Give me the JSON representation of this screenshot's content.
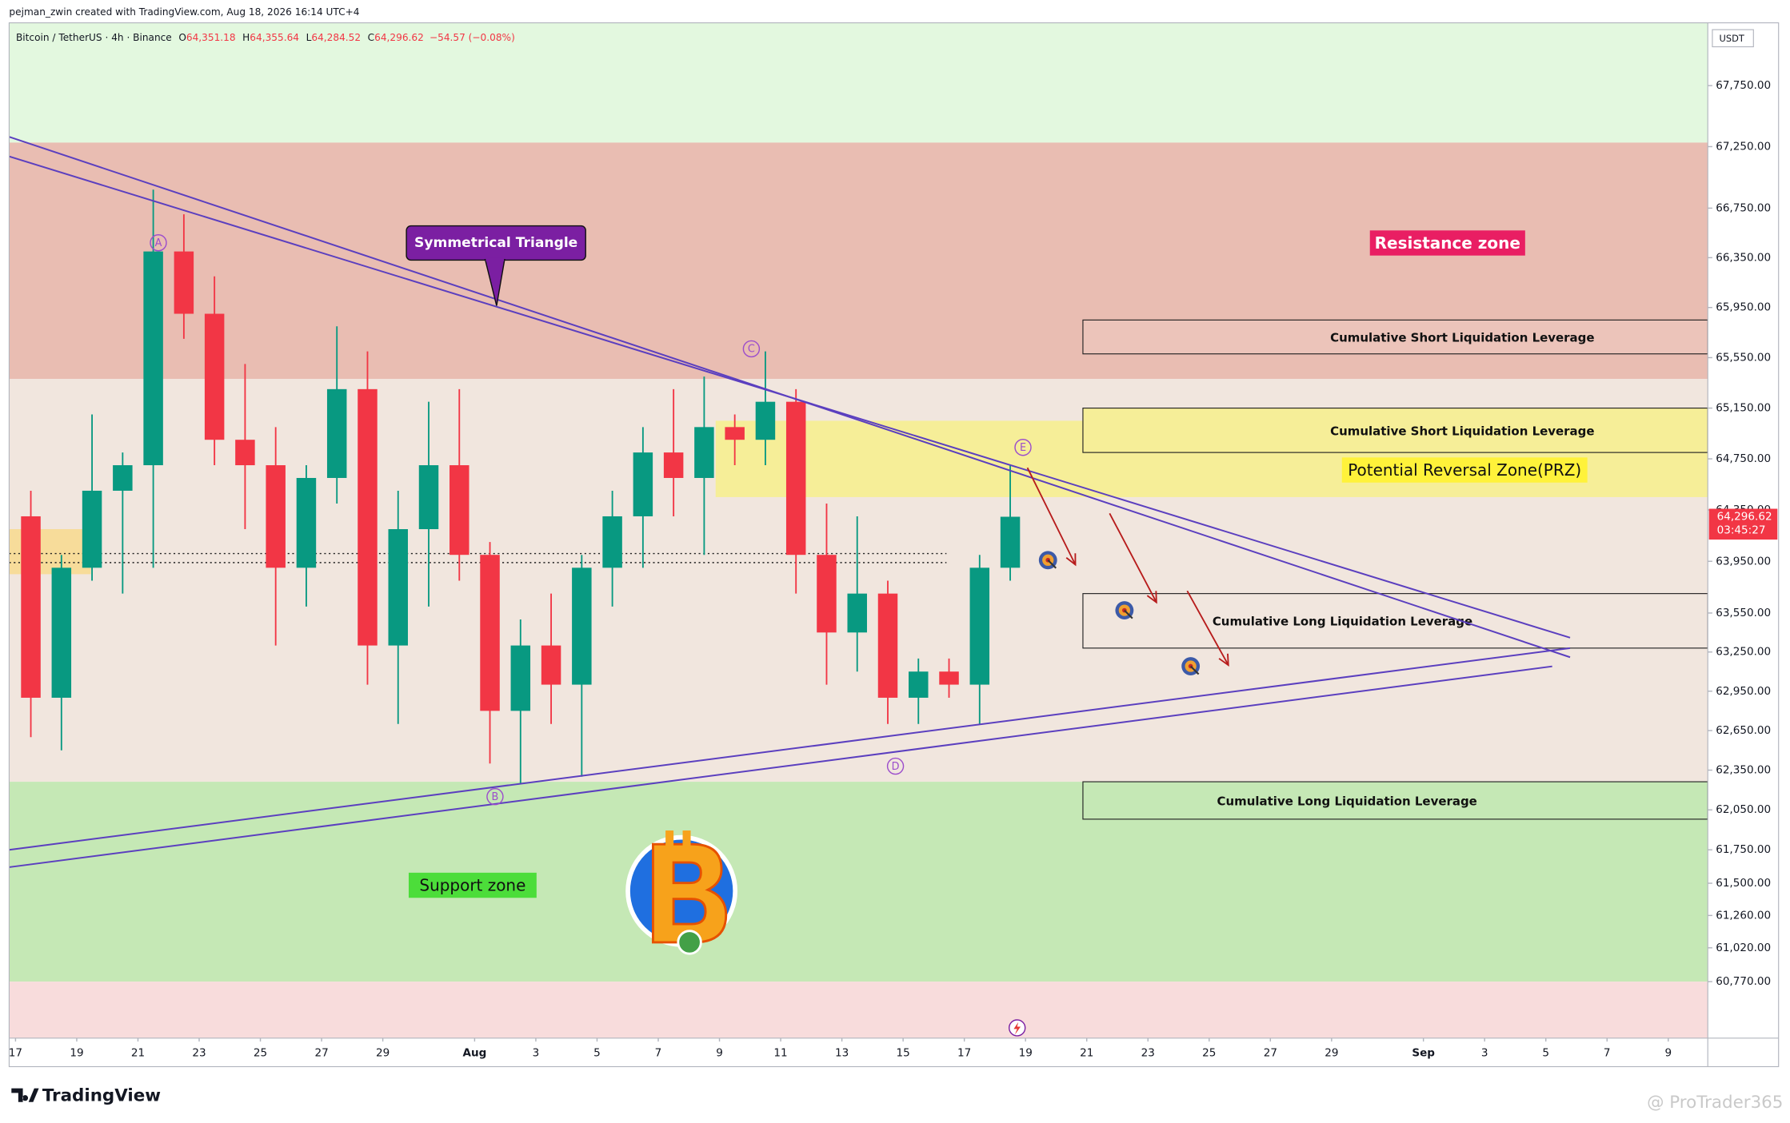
{
  "header": {
    "credit": "pejman_zwin created with TradingView.com, Aug 18, 2026 16:14 UTC+4",
    "symbol": "Bitcoin / TetherUS · 4h · Binance",
    "ohlc": [
      {
        "key": "O",
        "value": "64,351.18"
      },
      {
        "key": "H",
        "value": "64,355.64"
      },
      {
        "key": "L",
        "value": "64,284.52"
      },
      {
        "key": "C",
        "value": "64,296.62"
      }
    ],
    "change": "−54.57 (−0.08%)"
  },
  "chart_data": {
    "type": "candlestick",
    "log_scale": true,
    "currency": "USDT",
    "up_color": "#089981",
    "down_color": "#f23645",
    "line_color": "#5b3fbf",
    "xlim": [
      "2026-07-16T19:00",
      "2026-09-10T07:00"
    ],
    "ylim": [
      60355,
      68268
    ],
    "yticks": [
      {
        "value": 67750,
        "label": "67,750.00"
      },
      {
        "value": 67250,
        "label": "67,250.00"
      },
      {
        "value": 66750,
        "label": "66,750.00"
      },
      {
        "value": 66350,
        "label": "66,350.00"
      },
      {
        "value": 65950,
        "label": "65,950.00"
      },
      {
        "value": 65550,
        "label": "65,550.00"
      },
      {
        "value": 65150,
        "label": "65,150.00"
      },
      {
        "value": 64750,
        "label": "64,750.00"
      },
      {
        "value": 64350,
        "label": "64,350.00"
      },
      {
        "value": 63950,
        "label": "63,950.00"
      },
      {
        "value": 63550,
        "label": "63,550.00"
      },
      {
        "value": 63250,
        "label": "63,250.00"
      },
      {
        "value": 62950,
        "label": "62,950.00"
      },
      {
        "value": 62650,
        "label": "62,650.00"
      },
      {
        "value": 62350,
        "label": "62,350.00"
      },
      {
        "value": 62050,
        "label": "62,050.00"
      },
      {
        "value": 61750,
        "label": "61,750.00"
      },
      {
        "value": 61500,
        "label": "61,500.00"
      },
      {
        "value": 61260,
        "label": "61,260.00"
      },
      {
        "value": 61020,
        "label": "61,020.00"
      },
      {
        "value": 60770,
        "label": "60,770.00"
      }
    ],
    "xticks": [
      {
        "value": "2026-07-17",
        "label": "17"
      },
      {
        "value": "2026-07-19",
        "label": "19"
      },
      {
        "value": "2026-07-21",
        "label": "21"
      },
      {
        "value": "2026-07-23",
        "label": "23"
      },
      {
        "value": "2026-07-25",
        "label": "25"
      },
      {
        "value": "2026-07-27",
        "label": "27"
      },
      {
        "value": "2026-07-29",
        "label": "29"
      },
      {
        "value": "2026-08-01",
        "label": "Aug"
      },
      {
        "value": "2026-08-03",
        "label": "3"
      },
      {
        "value": "2026-08-05",
        "label": "5"
      },
      {
        "value": "2026-08-07",
        "label": "7"
      },
      {
        "value": "2026-08-09",
        "label": "9"
      },
      {
        "value": "2026-08-11",
        "label": "11"
      },
      {
        "value": "2026-08-13",
        "label": "13"
      },
      {
        "value": "2026-08-15",
        "label": "15"
      },
      {
        "value": "2026-08-17",
        "label": "17"
      },
      {
        "value": "2026-08-19",
        "label": "19"
      },
      {
        "value": "2026-08-21",
        "label": "21"
      },
      {
        "value": "2026-08-23",
        "label": "23"
      },
      {
        "value": "2026-08-25",
        "label": "25"
      },
      {
        "value": "2026-08-27",
        "label": "27"
      },
      {
        "value": "2026-08-29",
        "label": "29"
      },
      {
        "value": "2026-09-01",
        "label": "Sep"
      },
      {
        "value": "2026-09-03",
        "label": "3"
      },
      {
        "value": "2026-09-05",
        "label": "5"
      },
      {
        "value": "2026-09-07",
        "label": "7"
      },
      {
        "value": "2026-09-09",
        "label": "9"
      }
    ],
    "candles": {
      "x": [
        "2026-07-17",
        "2026-07-18",
        "2026-07-19",
        "2026-07-20",
        "2026-07-21",
        "2026-07-22",
        "2026-07-23",
        "2026-07-24",
        "2026-07-25",
        "2026-07-26",
        "2026-07-27",
        "2026-07-28",
        "2026-07-29",
        "2026-07-30",
        "2026-07-31",
        "2026-08-01",
        "2026-08-02",
        "2026-08-03",
        "2026-08-04",
        "2026-08-05",
        "2026-08-06",
        "2026-08-07",
        "2026-08-08",
        "2026-08-09",
        "2026-08-10",
        "2026-08-11",
        "2026-08-12",
        "2026-08-13",
        "2026-08-14",
        "2026-08-15",
        "2026-08-16",
        "2026-08-17",
        "2026-08-18"
      ],
      "open": [
        64300,
        62900,
        63900,
        64500,
        64700,
        66400,
        65900,
        64900,
        64700,
        63900,
        64600,
        65300,
        63300,
        64200,
        64700,
        64000,
        62800,
        63300,
        63000,
        63900,
        64300,
        64800,
        64600,
        65000,
        64900,
        65200,
        64000,
        63400,
        63700,
        62900,
        63100,
        63000,
        63900
      ],
      "high": [
        64500,
        64000,
        65100,
        64800,
        66900,
        66700,
        66200,
        65500,
        65000,
        64700,
        65800,
        65600,
        64500,
        65200,
        65300,
        64100,
        63500,
        63700,
        64000,
        64500,
        65000,
        65300,
        65400,
        65100,
        65600,
        65300,
        64400,
        64300,
        63800,
        63200,
        63200,
        64000,
        64700
      ],
      "low": [
        62600,
        62500,
        63800,
        63700,
        63900,
        65700,
        64700,
        64200,
        63300,
        63600,
        64400,
        63000,
        62700,
        63600,
        63800,
        62400,
        62250,
        62700,
        62300,
        63600,
        63900,
        64300,
        64000,
        64700,
        64700,
        63700,
        63000,
        63100,
        62700,
        62700,
        62900,
        62700,
        63800
      ],
      "close": [
        62900,
        63900,
        64500,
        64700,
        66400,
        65900,
        64900,
        64700,
        63900,
        64600,
        65300,
        63300,
        64200,
        64700,
        64000,
        62800,
        63300,
        63000,
        63900,
        64300,
        64800,
        64600,
        65000,
        64900,
        65200,
        64000,
        63400,
        63700,
        62900,
        63100,
        63000,
        63900,
        64296.62
      ]
    },
    "price_tag": {
      "value": 64296.62,
      "label": "64,296.62",
      "countdown": "03:45:27"
    },
    "zones": [
      {
        "from": 67283,
        "to": 68268,
        "color": "#e3f8df"
      },
      {
        "from": 65380,
        "to": 67283,
        "color": "#e9bdb2",
        "label": "Resistance zone"
      },
      {
        "from": 62262,
        "to": 65380,
        "color": "#f1e6de"
      },
      {
        "from": 60770,
        "to": 62262,
        "color": "#c5e8b5",
        "label": "Support zone"
      },
      {
        "from": 60355,
        "to": 60770,
        "color": "#f8dcdc"
      },
      {
        "from": 64450,
        "to": 65050,
        "start": "2026-08-08T21:00",
        "color": "#f6ee98",
        "label": "Potential Reversal Zone(PRZ)"
      },
      {
        "from": 63850,
        "to": 64200,
        "start": "2026-07-16T19:00",
        "end": "2026-07-19T11:00",
        "color": "#f7dc9a"
      }
    ],
    "boxes": [
      {
        "from": 65580,
        "to": 65850,
        "start": "2026-08-20T21:00",
        "color": "#ecc4ba",
        "label": "Cumulative Short Liquidation Leverage"
      },
      {
        "from": 64800,
        "to": 65150,
        "start": "2026-08-20T21:00",
        "color": "#f6ee98",
        "label": "Cumulative Short Liquidation Leverage"
      },
      {
        "from": 63280,
        "to": 63700,
        "start": "2026-08-20T21:00",
        "color": "#f1e6de",
        "label": "Cumulative Long Liquidation Leverage"
      },
      {
        "from": 61980,
        "to": 62262,
        "start": "2026-08-20T21:00",
        "color": "#c5e8b5",
        "label": "Cumulative Long Liquidation Leverage"
      }
    ],
    "trend_lines": [
      {
        "x": [
          "2026-07-16T19:00",
          "2026-09-05T19:00"
        ],
        "y": [
          67330,
          63210
        ]
      },
      {
        "x": [
          "2026-07-16T19:00",
          "2026-09-05T19:00"
        ],
        "y": [
          67170,
          63360
        ]
      },
      {
        "x": [
          "2026-07-16T19:00",
          "2026-09-05T19:00"
        ],
        "y": [
          61750,
          63280
        ]
      },
      {
        "x": [
          "2026-07-16T19:00",
          "2026-09-05T05:00"
        ],
        "y": [
          61620,
          63140
        ]
      }
    ],
    "dotted_lines": [
      {
        "y": 64010,
        "end": "2026-08-16T10:00"
      },
      {
        "y": 63940,
        "end": "2026-08-16T10:00"
      }
    ],
    "wave_labels": [
      {
        "label": "A",
        "x": "2026-07-21T16:00",
        "y": 66470
      },
      {
        "label": "B",
        "x": "2026-08-01T16:00",
        "y": 62150
      },
      {
        "label": "C",
        "x": "2026-08-10T01:00",
        "y": 65620
      },
      {
        "label": "D",
        "x": "2026-08-14T18:00",
        "y": 62380
      },
      {
        "label": "E",
        "x": "2026-08-18T22:00",
        "y": 64840
      }
    ],
    "callout": "Symmetrical Triangle"
  },
  "footer": {
    "logo": "TradingView",
    "watermark": "@ ProTrader365"
  }
}
